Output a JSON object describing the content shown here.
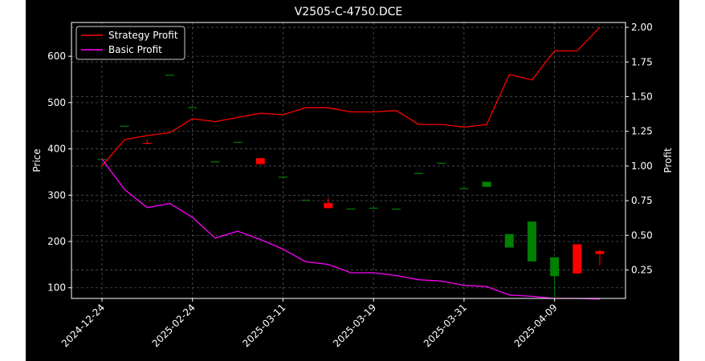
{
  "chart_data": {
    "type": "candlestick+line",
    "title": "V2505-C-4750.DCE",
    "ylabel_left": "Price",
    "ylabel_right": "Profit",
    "ylim_left": [
      77,
      673
    ],
    "ylim_right": [
      0.045,
      2.035
    ],
    "yticks_left": [
      100,
      200,
      300,
      400,
      500,
      600
    ],
    "yticks_right": [
      0.25,
      0.5,
      0.75,
      1.0,
      1.25,
      1.5,
      1.75,
      2.0
    ],
    "ytick_labels_right": [
      "0.25",
      "0.50",
      "0.75",
      "1.00",
      "1.25",
      "1.50",
      "1.75",
      "2.00"
    ],
    "xtick_labels": [
      "2024-12-24",
      "2025-02-24",
      "2025-03-11",
      "2025-03-19",
      "2025-03-31",
      "2025-04-09"
    ],
    "xtick_index": [
      0,
      4,
      8,
      12,
      16,
      20
    ],
    "grid": true,
    "legend_position": "top-left",
    "colors": {
      "background": "#000000",
      "text": "#ffffff",
      "axes": "#ffffff",
      "grid": "#555555",
      "up": "#008000",
      "down": "#ff0000",
      "strategy": "#ff0000",
      "basic": "#ff00ff"
    },
    "candles": [
      {
        "open": 378,
        "high": 378,
        "low": 378,
        "close": 378
      },
      {
        "open": 450,
        "high": 450,
        "low": 450,
        "close": 450
      },
      {
        "open": 413,
        "high": 420,
        "low": 410,
        "close": 412
      },
      {
        "open": 560,
        "high": 560,
        "low": 560,
        "close": 560
      },
      {
        "open": 490,
        "high": 490,
        "low": 490,
        "close": 490
      },
      {
        "open": 373,
        "high": 373,
        "low": 373,
        "close": 373
      },
      {
        "open": 415,
        "high": 415,
        "low": 415,
        "close": 415
      },
      {
        "open": 380,
        "high": 380,
        "low": 367,
        "close": 367
      },
      {
        "open": 340,
        "high": 340,
        "low": 340,
        "close": 340
      },
      {
        "open": 290,
        "high": 290,
        "low": 290,
        "close": 290
      },
      {
        "open": 283,
        "high": 295,
        "low": 272,
        "close": 272
      },
      {
        "open": 271,
        "high": 271,
        "low": 271,
        "close": 271
      },
      {
        "open": 273,
        "high": 273,
        "low": 273,
        "close": 273
      },
      {
        "open": 271,
        "high": 271,
        "low": 271,
        "close": 271
      },
      {
        "open": 348,
        "high": 348,
        "low": 348,
        "close": 348
      },
      {
        "open": 370,
        "high": 370,
        "low": 370,
        "close": 370
      },
      {
        "open": 315,
        "high": 315,
        "low": 315,
        "close": 315
      },
      {
        "open": 318,
        "high": 329,
        "low": 318,
        "close": 329
      },
      {
        "open": 187,
        "high": 216,
        "low": 187,
        "close": 216
      },
      {
        "open": 157,
        "high": 243,
        "low": 157,
        "close": 243
      },
      {
        "open": 125,
        "high": 166,
        "low": 80,
        "close": 166
      },
      {
        "open": 194,
        "high": 194,
        "low": 131,
        "close": 131
      },
      {
        "open": 179,
        "high": 182,
        "low": 148,
        "close": 173
      }
    ],
    "series": [
      {
        "name": "Strategy Profit",
        "values": [
          1.0,
          1.19,
          1.22,
          1.24,
          1.34,
          1.32,
          1.35,
          1.38,
          1.37,
          1.42,
          1.42,
          1.39,
          1.39,
          1.4,
          1.3,
          1.3,
          1.28,
          1.3,
          1.66,
          1.62,
          1.83,
          1.83,
          2.0
        ]
      },
      {
        "name": "Basic Profit",
        "values": [
          1.05,
          0.83,
          0.7,
          0.73,
          0.63,
          0.48,
          0.53,
          0.47,
          0.4,
          0.31,
          0.29,
          0.23,
          0.23,
          0.21,
          0.18,
          0.17,
          0.14,
          0.13,
          0.07,
          0.06,
          0.045,
          0.045,
          0.04
        ]
      }
    ]
  }
}
